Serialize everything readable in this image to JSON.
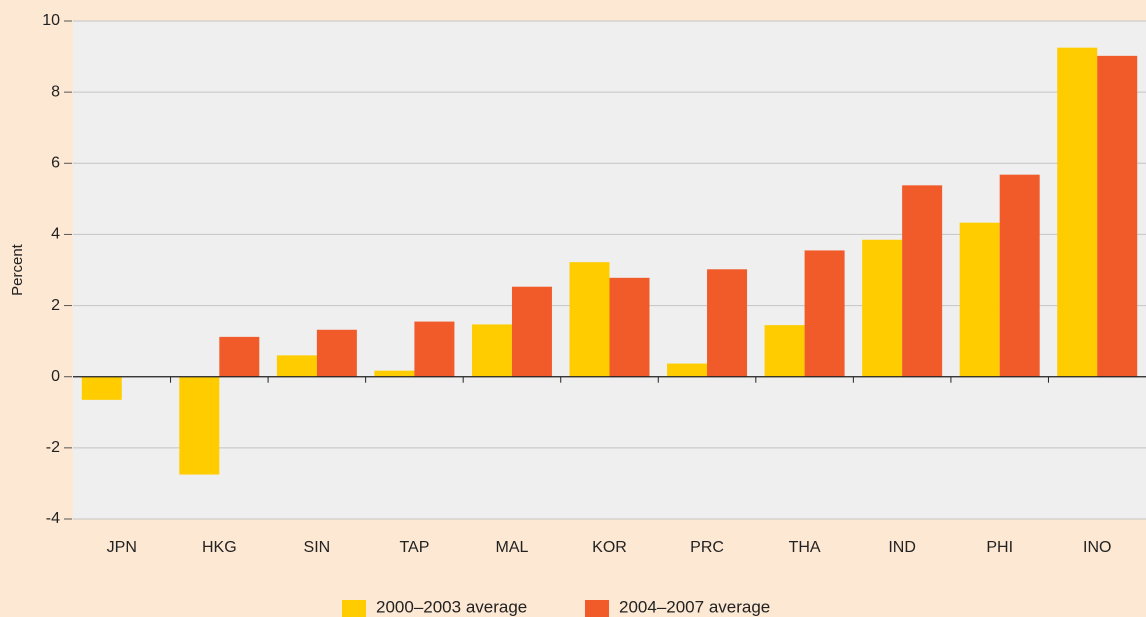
{
  "chart_data": {
    "type": "bar",
    "y_label": "Percent",
    "categories": [
      "JPN",
      "HKG",
      "SIN",
      "TAP",
      "MAL",
      "KOR",
      "PRC",
      "THA",
      "IND",
      "PHI",
      "INO"
    ],
    "series": [
      {
        "name": "2000–2003 average",
        "color": "#ffcc00",
        "values": [
          -0.65,
          -2.75,
          0.6,
          0.17,
          1.47,
          3.22,
          0.37,
          1.45,
          3.85,
          4.33,
          9.25
        ]
      },
      {
        "name": "2004–2007 average",
        "color": "#f15a29",
        "values": [
          null,
          1.12,
          1.32,
          1.55,
          2.53,
          2.78,
          3.02,
          3.55,
          5.38,
          5.68,
          9.02
        ]
      }
    ],
    "ylim": [
      -4,
      10
    ],
    "yticks": [
      -4,
      -2,
      0,
      2,
      4,
      6,
      8,
      10
    ],
    "grid": true
  }
}
